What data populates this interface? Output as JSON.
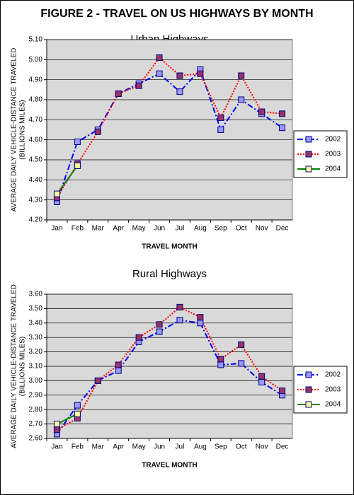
{
  "title": "FIGURE 2 - TRAVEL ON US HIGHWAYS BY MONTH",
  "chart_data": [
    {
      "type": "line",
      "title": "Urban Highways",
      "xlabel": "TRAVEL MONTH",
      "ylabel": [
        "AVERAGE DAILY VEHICLE-DISTANCE TRAVELED",
        "(BILLIONS MILES)"
      ],
      "categories": [
        "Jan",
        "Feb",
        "Mar",
        "Apr",
        "May",
        "Jun",
        "Jul",
        "Aug",
        "Sep",
        "Oct",
        "Nov",
        "Dec"
      ],
      "series": [
        {
          "name": "2002",
          "color": "#0000ff",
          "marker_color": "#9999ff",
          "line_style": "dashdot",
          "values": [
            4.29,
            4.59,
            4.65,
            4.83,
            4.88,
            4.93,
            4.84,
            4.95,
            4.65,
            4.8,
            4.73,
            4.66
          ]
        },
        {
          "name": "2003",
          "color": "#ff0000",
          "marker_color": "#993366",
          "line_style": "dotted",
          "values": [
            4.31,
            4.48,
            4.64,
            4.83,
            4.87,
            5.01,
            4.92,
            4.93,
            4.71,
            4.92,
            4.74,
            4.73
          ]
        },
        {
          "name": "2004",
          "color": "#008000",
          "marker_color": "#ffff99",
          "line_style": "solid",
          "values": [
            4.33,
            4.47,
            null,
            null,
            null,
            null,
            null,
            null,
            null,
            null,
            null,
            null
          ]
        }
      ],
      "ylim": [
        4.2,
        5.1
      ],
      "yticks": [
        {
          "value": 4.2,
          "label": "4.20"
        },
        {
          "value": 4.3,
          "label": "4.30"
        },
        {
          "value": 4.4,
          "label": "4.40"
        },
        {
          "value": 4.5,
          "label": "4.50"
        },
        {
          "value": 4.6,
          "label": "4.60"
        },
        {
          "value": 4.7,
          "label": "4.70"
        },
        {
          "value": 4.8,
          "label": "4.80"
        },
        {
          "value": 4.9,
          "label": "4.90"
        },
        {
          "value": 5.0,
          "label": "5.00"
        },
        {
          "value": 5.1,
          "label": "5.10"
        }
      ],
      "grid": true,
      "legend": "right"
    },
    {
      "type": "line",
      "title": "Rural Highways",
      "xlabel": "TRAVEL MONTH",
      "ylabel": [
        "AVERAGE DAILY VEHICLE-DISTANCE TRAVELED",
        "(BILLIONS MILES)"
      ],
      "categories": [
        "Jan",
        "Feb",
        "Mar",
        "Apr",
        "May",
        "Jun",
        "Jul",
        "Aug",
        "Sep",
        "Oct",
        "Nov",
        "Dec"
      ],
      "series": [
        {
          "name": "2002",
          "color": "#0000ff",
          "marker_color": "#9999ff",
          "line_style": "dashdot",
          "values": [
            2.63,
            2.83,
            3.0,
            3.07,
            3.27,
            3.34,
            3.42,
            3.4,
            3.11,
            3.12,
            2.99,
            2.9
          ]
        },
        {
          "name": "2003",
          "color": "#ff0000",
          "marker_color": "#993366",
          "line_style": "dotted",
          "values": [
            2.66,
            2.74,
            3.0,
            3.11,
            3.3,
            3.39,
            3.51,
            3.44,
            3.15,
            3.25,
            3.03,
            2.93
          ]
        },
        {
          "name": "2004",
          "color": "#008000",
          "marker_color": "#ffff99",
          "line_style": "solid",
          "values": [
            2.7,
            2.77,
            null,
            null,
            null,
            null,
            null,
            null,
            null,
            null,
            null,
            null
          ]
        }
      ],
      "ylim": [
        2.6,
        3.6
      ],
      "yticks": [
        {
          "value": 2.6,
          "label": "2.60"
        },
        {
          "value": 2.7,
          "label": "2.70"
        },
        {
          "value": 2.8,
          "label": "2.80"
        },
        {
          "value": 2.9,
          "label": "2.90"
        },
        {
          "value": 3.0,
          "label": "3.00"
        },
        {
          "value": 3.1,
          "label": "3.10"
        },
        {
          "value": 3.2,
          "label": "3.20"
        },
        {
          "value": 3.3,
          "label": "3.30"
        },
        {
          "value": 3.4,
          "label": "3.40"
        },
        {
          "value": 3.5,
          "label": "3.50"
        },
        {
          "value": 3.6,
          "label": "3.60"
        }
      ],
      "grid": true,
      "legend": "right"
    }
  ]
}
